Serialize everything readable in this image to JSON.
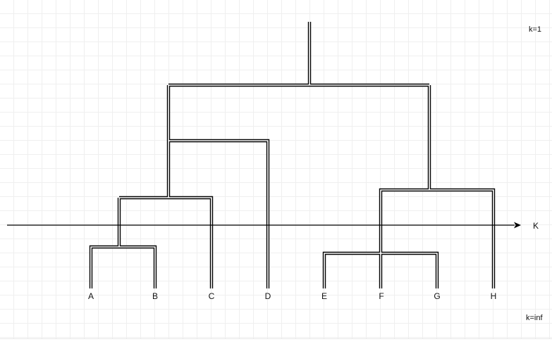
{
  "diagram": {
    "type": "dendrogram",
    "leaves": [
      "A",
      "B",
      "C",
      "D",
      "E",
      "F",
      "G",
      "H"
    ],
    "top_note": "k=1",
    "bottom_note": "k=inf",
    "axis_label": "K",
    "colors": {
      "line": "#000000",
      "grid": "#efefef",
      "background": "#ffffff"
    }
  }
}
